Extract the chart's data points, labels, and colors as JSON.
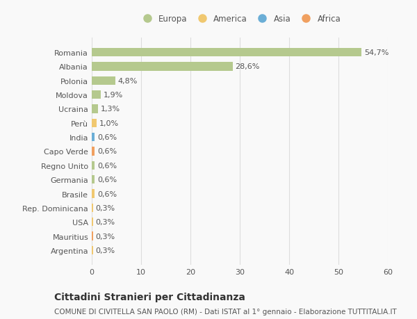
{
  "countries": [
    "Romania",
    "Albania",
    "Polonia",
    "Moldova",
    "Ucraina",
    "Perù",
    "India",
    "Capo Verde",
    "Regno Unito",
    "Germania",
    "Brasile",
    "Rep. Dominicana",
    "USA",
    "Mauritius",
    "Argentina"
  ],
  "values": [
    54.7,
    28.6,
    4.8,
    1.9,
    1.3,
    1.0,
    0.6,
    0.6,
    0.6,
    0.6,
    0.6,
    0.3,
    0.3,
    0.3,
    0.3
  ],
  "labels": [
    "54,7%",
    "28,6%",
    "4,8%",
    "1,9%",
    "1,3%",
    "1,0%",
    "0,6%",
    "0,6%",
    "0,6%",
    "0,6%",
    "0,6%",
    "0,3%",
    "0,3%",
    "0,3%",
    "0,3%"
  ],
  "colors": [
    "#b5c98e",
    "#b5c98e",
    "#b5c98e",
    "#b5c98e",
    "#b5c98e",
    "#f0c870",
    "#6baed6",
    "#f0a060",
    "#b5c98e",
    "#b5c98e",
    "#f0c870",
    "#f0c870",
    "#f0c870",
    "#f0a060",
    "#f0c870"
  ],
  "legend_labels": [
    "Europa",
    "America",
    "Asia",
    "Africa"
  ],
  "legend_colors": [
    "#b5c98e",
    "#f0c870",
    "#6baed6",
    "#f0a060"
  ],
  "title": "Cittadini Stranieri per Cittadinanza",
  "subtitle": "COMUNE DI CIVITELLA SAN PAOLO (RM) - Dati ISTAT al 1° gennaio - Elaborazione TUTTITALIA.IT",
  "xlim": [
    0,
    60
  ],
  "xticks": [
    0,
    10,
    20,
    30,
    40,
    50,
    60
  ],
  "background_color": "#f9f9f9",
  "grid_color": "#dddddd",
  "text_color": "#555555",
  "bar_height": 0.6,
  "title_fontsize": 10,
  "subtitle_fontsize": 7.5,
  "label_fontsize": 8,
  "tick_fontsize": 8,
  "legend_fontsize": 8.5
}
